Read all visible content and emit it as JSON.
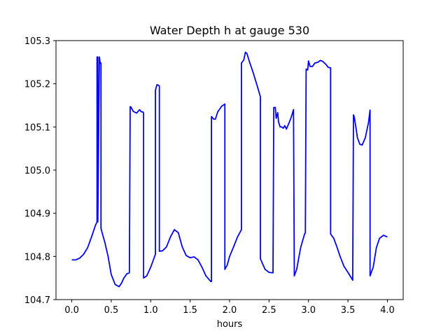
{
  "chart_data": {
    "type": "line",
    "title": "Water Depth h at gauge 530",
    "xlabel": "hours",
    "ylabel": "",
    "xlim": [
      -0.2,
      4.2
    ],
    "ylim": [
      104.7,
      105.3
    ],
    "xticks": [
      0.0,
      0.5,
      1.0,
      1.5,
      2.0,
      2.5,
      3.0,
      3.5,
      4.0
    ],
    "xtick_labels": [
      "0.0",
      "0.5",
      "1.0",
      "1.5",
      "2.0",
      "2.5",
      "3.0",
      "3.5",
      "4.0"
    ],
    "yticks": [
      104.7,
      104.8,
      104.9,
      105.0,
      105.1,
      105.2,
      105.3
    ],
    "ytick_labels": [
      "104.7",
      "104.8",
      "104.9",
      "105.0",
      "105.1",
      "105.2",
      "105.3"
    ],
    "grid": false,
    "series_color": "#0000ff",
    "series": [
      {
        "name": "",
        "x": [
          0.0,
          0.05,
          0.1,
          0.15,
          0.2,
          0.25,
          0.3,
          0.32,
          0.32,
          0.33,
          0.33,
          0.35,
          0.36,
          0.37,
          0.37,
          0.38,
          0.42,
          0.46,
          0.5,
          0.55,
          0.6,
          0.63,
          0.66,
          0.7,
          0.73,
          0.74,
          0.75,
          0.78,
          0.82,
          0.86,
          0.88,
          0.9,
          0.91,
          0.91,
          0.95,
          1.0,
          1.06,
          1.06,
          1.08,
          1.1,
          1.11,
          1.11,
          1.15,
          1.2,
          1.25,
          1.3,
          1.35,
          1.4,
          1.45,
          1.5,
          1.55,
          1.6,
          1.65,
          1.7,
          1.76,
          1.77,
          1.77,
          1.8,
          1.82,
          1.85,
          1.9,
          1.94,
          1.94,
          1.97,
          2.0,
          2.05,
          2.1,
          2.15,
          2.15,
          2.18,
          2.2,
          2.22,
          2.25,
          2.3,
          2.35,
          2.39,
          2.39,
          2.42,
          2.45,
          2.5,
          2.55,
          2.56,
          2.58,
          2.59,
          2.61,
          2.62,
          2.64,
          2.66,
          2.68,
          2.7,
          2.72,
          2.75,
          2.78,
          2.81,
          2.82,
          2.85,
          2.9,
          2.95,
          2.96,
          2.97,
          2.99,
          3.0,
          3.02,
          3.05,
          3.08,
          3.12,
          3.15,
          3.18,
          3.22,
          3.25,
          3.28,
          3.28,
          3.32,
          3.36,
          3.4,
          3.45,
          3.5,
          3.55,
          3.56,
          3.57,
          3.58,
          3.6,
          3.62,
          3.65,
          3.68,
          3.72,
          3.76,
          3.78,
          3.78,
          3.82,
          3.86,
          3.9,
          3.95,
          4.0
        ],
        "y": [
          104.792,
          104.792,
          104.796,
          104.805,
          104.82,
          104.845,
          104.872,
          104.88,
          105.262,
          105.262,
          104.88,
          105.262,
          105.248,
          105.248,
          104.865,
          104.858,
          104.832,
          104.8,
          104.758,
          104.735,
          104.73,
          104.738,
          104.75,
          104.76,
          104.762,
          105.147,
          105.146,
          105.136,
          105.132,
          105.14,
          105.135,
          105.135,
          105.132,
          104.75,
          104.755,
          104.775,
          104.805,
          105.185,
          105.198,
          105.196,
          105.195,
          104.812,
          104.813,
          104.822,
          104.845,
          104.862,
          104.855,
          104.822,
          104.802,
          104.797,
          104.799,
          104.792,
          104.775,
          104.755,
          104.742,
          104.742,
          105.124,
          105.118,
          105.118,
          105.135,
          105.148,
          105.153,
          104.77,
          104.78,
          104.8,
          104.822,
          104.845,
          104.862,
          105.248,
          105.255,
          105.273,
          105.27,
          105.252,
          105.225,
          105.195,
          105.17,
          104.795,
          104.782,
          104.77,
          104.763,
          104.762,
          105.145,
          105.145,
          105.12,
          105.133,
          105.112,
          105.1,
          105.1,
          105.097,
          105.103,
          105.095,
          105.108,
          105.122,
          105.14,
          104.755,
          104.77,
          104.82,
          104.852,
          104.855,
          105.234,
          105.232,
          105.253,
          105.24,
          105.24,
          105.248,
          105.25,
          105.254,
          105.252,
          105.245,
          105.238,
          105.237,
          104.852,
          104.842,
          104.822,
          104.8,
          104.777,
          104.763,
          104.748,
          104.745,
          105.128,
          105.123,
          105.1,
          105.075,
          105.06,
          105.058,
          105.075,
          105.11,
          105.139,
          104.755,
          104.775,
          104.82,
          104.842,
          104.849,
          104.845
        ]
      }
    ]
  }
}
